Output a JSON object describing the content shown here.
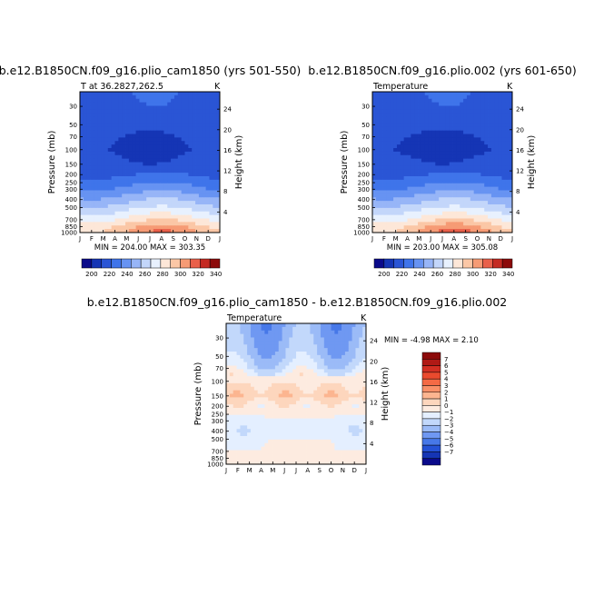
{
  "panels": [
    {
      "title": "b.e12.B1850CN.f09_g16.plio_cam1850 (yrs 501-550)",
      "subtitle_left": "T at 36.2827,262.5",
      "subtitle_right": "K",
      "stats": "MIN = 204.00 MAX = 303.35",
      "ylabel": "Pressure (mb)",
      "y2label": "Height (km)"
    },
    {
      "title": "b.e12.B1850CN.f09_g16.plio.002 (yrs 601-650)",
      "subtitle_left": "Temperature",
      "subtitle_right": "K",
      "stats": "MIN = 203.00 MAX = 305.08",
      "ylabel": "Pressure (mb)",
      "y2label": "Height (km)"
    },
    {
      "title": "b.e12.B1850CN.f09_g16.plio_cam1850 - b.e12.B1850CN.f09_g16.plio.002",
      "subtitle_left": "Temperature",
      "subtitle_right": "K",
      "stats": "MIN =  -4.98 MAX =   2.10",
      "ylabel": "Pressure (mb)",
      "y2label": "Height (km)"
    }
  ],
  "chart_data": [
    {
      "type": "heatmap",
      "title": "b.e12.B1850CN.f09_g16.plio_cam1850 (yrs 501-550)",
      "xlabel": "",
      "ylabel": "Pressure (mb)",
      "y2label": "Height (km)",
      "x_ticks": [
        "J",
        "F",
        "M",
        "A",
        "M",
        "J",
        "J",
        "A",
        "S",
        "O",
        "N",
        "D",
        "J"
      ],
      "y_ticks": [
        30,
        50,
        70,
        100,
        150,
        200,
        250,
        300,
        400,
        500,
        700,
        850,
        1000
      ],
      "y_log": true,
      "ylim": [
        1000,
        20
      ],
      "y2_ticks": [
        4,
        8,
        12,
        16,
        20,
        24
      ],
      "units": "K",
      "min": 204.0,
      "max": 303.35,
      "colorbar_ticks": [
        200,
        220,
        240,
        260,
        280,
        300,
        320,
        340
      ],
      "colorbar_colors": [
        "#0a0a8a",
        "#1535b5",
        "#2a55d5",
        "#3f74ea",
        "#6793f2",
        "#97b5f7",
        "#c3d6fa",
        "#e8f1fe",
        "#fde7d8",
        "#fbc7a6",
        "#f69b75",
        "#e9604a",
        "#c42a22",
        "#8c0a0a"
      ],
      "field_levels": [
        {
          "p": 20,
          "Tmin": 215,
          "Tmax": 222,
          "peak_month": 6.5
        },
        {
          "p": 30,
          "Tmin": 214,
          "Tmax": 220,
          "peak_month": 6.5
        },
        {
          "p": 50,
          "Tmin": 212,
          "Tmax": 218,
          "peak_month": 6.5
        },
        {
          "p": 70,
          "Tmin": 208,
          "Tmax": 214,
          "peak_month": 0
        },
        {
          "p": 100,
          "Tmin": 206,
          "Tmax": 212,
          "peak_month": 0
        },
        {
          "p": 150,
          "Tmin": 210,
          "Tmax": 216,
          "peak_month": 0
        },
        {
          "p": 200,
          "Tmin": 216,
          "Tmax": 222,
          "peak_month": 7
        },
        {
          "p": 250,
          "Tmin": 222,
          "Tmax": 231,
          "peak_month": 7
        },
        {
          "p": 300,
          "Tmin": 228,
          "Tmax": 238,
          "peak_month": 7
        },
        {
          "p": 400,
          "Tmin": 240,
          "Tmax": 252,
          "peak_month": 7
        },
        {
          "p": 500,
          "Tmin": 250,
          "Tmax": 262,
          "peak_month": 7
        },
        {
          "p": 700,
          "Tmin": 265,
          "Tmax": 281,
          "peak_month": 7
        },
        {
          "p": 850,
          "Tmin": 275,
          "Tmax": 296,
          "peak_month": 7
        },
        {
          "p": 1000,
          "Tmin": 280,
          "Tmax": 303,
          "peak_month": 7
        }
      ]
    },
    {
      "type": "heatmap",
      "title": "b.e12.B1850CN.f09_g16.plio.002 (yrs 601-650)",
      "xlabel": "",
      "ylabel": "Pressure (mb)",
      "y2label": "Height (km)",
      "x_ticks": [
        "J",
        "F",
        "M",
        "A",
        "M",
        "J",
        "J",
        "A",
        "S",
        "O",
        "N",
        "D",
        "J"
      ],
      "y_ticks": [
        30,
        50,
        70,
        100,
        150,
        200,
        250,
        300,
        400,
        500,
        700,
        850,
        1000
      ],
      "y_log": true,
      "ylim": [
        1000,
        20
      ],
      "y2_ticks": [
        4,
        8,
        12,
        16,
        20,
        24
      ],
      "units": "K",
      "min": 203.0,
      "max": 305.08,
      "colorbar_ticks": [
        200,
        220,
        240,
        260,
        280,
        300,
        320,
        340
      ],
      "colorbar_colors": [
        "#0a0a8a",
        "#1535b5",
        "#2a55d5",
        "#3f74ea",
        "#6793f2",
        "#97b5f7",
        "#c3d6fa",
        "#e8f1fe",
        "#fde7d8",
        "#fbc7a6",
        "#f69b75",
        "#e9604a",
        "#c42a22",
        "#8c0a0a"
      ],
      "field_levels": [
        {
          "p": 20,
          "Tmin": 215,
          "Tmax": 222,
          "peak_month": 6.5
        },
        {
          "p": 30,
          "Tmin": 214,
          "Tmax": 220,
          "peak_month": 6.5
        },
        {
          "p": 50,
          "Tmin": 212,
          "Tmax": 218,
          "peak_month": 6.5
        },
        {
          "p": 70,
          "Tmin": 207,
          "Tmax": 213,
          "peak_month": 0
        },
        {
          "p": 100,
          "Tmin": 205,
          "Tmax": 211,
          "peak_month": 0
        },
        {
          "p": 150,
          "Tmin": 210,
          "Tmax": 216,
          "peak_month": 0
        },
        {
          "p": 200,
          "Tmin": 216,
          "Tmax": 222,
          "peak_month": 7
        },
        {
          "p": 250,
          "Tmin": 222,
          "Tmax": 231,
          "peak_month": 7
        },
        {
          "p": 300,
          "Tmin": 228,
          "Tmax": 238,
          "peak_month": 7
        },
        {
          "p": 400,
          "Tmin": 240,
          "Tmax": 252,
          "peak_month": 7
        },
        {
          "p": 500,
          "Tmin": 250,
          "Tmax": 262,
          "peak_month": 7
        },
        {
          "p": 700,
          "Tmin": 265,
          "Tmax": 282,
          "peak_month": 7
        },
        {
          "p": 850,
          "Tmin": 275,
          "Tmax": 297,
          "peak_month": 7
        },
        {
          "p": 1000,
          "Tmin": 280,
          "Tmax": 305,
          "peak_month": 7
        }
      ]
    },
    {
      "type": "heatmap",
      "title": "b.e12.B1850CN.f09_g16.plio_cam1850 - b.e12.B1850CN.f09_g16.plio.002",
      "xlabel": "",
      "ylabel": "Pressure (mb)",
      "y2label": "Height (km)",
      "x_ticks": [
        "J",
        "F",
        "M",
        "A",
        "M",
        "J",
        "J",
        "A",
        "S",
        "O",
        "N",
        "D",
        "J"
      ],
      "y_ticks": [
        30,
        50,
        70,
        100,
        150,
        200,
        250,
        300,
        400,
        500,
        700,
        850,
        1000
      ],
      "y_log": true,
      "ylim": [
        1000,
        20
      ],
      "y2_ticks": [
        4,
        8,
        12,
        16,
        20,
        24
      ],
      "units": "K",
      "min": -4.98,
      "max": 2.1,
      "colorbar_ticks": [
        7,
        6,
        5,
        4,
        3,
        2,
        1,
        0,
        -1,
        -2,
        -3,
        -4,
        -5,
        -6,
        -7
      ],
      "colorbar_colors": [
        "#8c0a0a",
        "#b01a16",
        "#d22f23",
        "#ea4a2e",
        "#f46a45",
        "#f99068",
        "#fcb590",
        "#fdd6bd",
        "#fdebe0",
        "#e4efff",
        "#c2d8fb",
        "#9bbbf7",
        "#6f98f2",
        "#4778e8",
        "#2552d6",
        "#1535b5",
        "#0a0a8a"
      ],
      "field_levels": [
        {
          "p": 20,
          "d": -3.5
        },
        {
          "p": 30,
          "d": -3.2
        },
        {
          "p": 50,
          "d": -2.5
        },
        {
          "p": 70,
          "d": -1.5
        },
        {
          "p": 100,
          "d": 0.3
        },
        {
          "p": 150,
          "d": 1.2
        },
        {
          "p": 200,
          "d": 0.0
        },
        {
          "p": 250,
          "d": -0.3
        },
        {
          "p": 300,
          "d": -0.6
        },
        {
          "p": 400,
          "d": -0.9
        },
        {
          "p": 500,
          "d": -0.5
        },
        {
          "p": 700,
          "d": -0.3
        },
        {
          "p": 850,
          "d": -0.2
        },
        {
          "p": 1000,
          "d": -0.2
        }
      ]
    }
  ]
}
